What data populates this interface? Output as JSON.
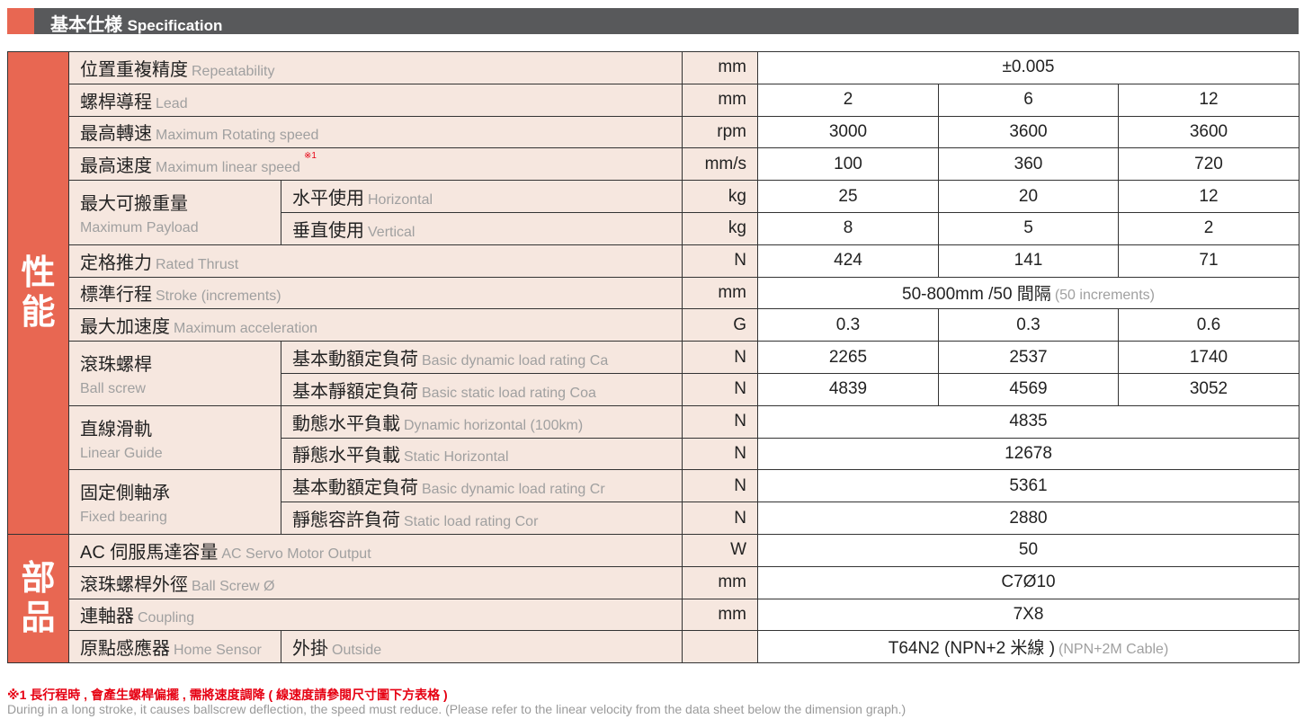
{
  "header": {
    "title_zh": "基本仕様",
    "title_en": "Specification"
  },
  "sections": [
    {
      "title": "性能",
      "rows": [
        {
          "zh": "位置重複精度",
          "en": "Repeatability",
          "unit": "mm",
          "values": [
            "±0.005"
          ]
        },
        {
          "zh": "螺桿導程",
          "en": "Lead",
          "unit": "mm",
          "values": [
            "2",
            "6",
            "12"
          ]
        },
        {
          "zh": "最高轉速",
          "en": "Maximum Rotating speed",
          "unit": "rpm",
          "values": [
            "3000",
            "3600",
            "3600"
          ]
        },
        {
          "zh": "最高速度",
          "en": "Maximum linear speed",
          "note": "※1",
          "unit": "mm/s",
          "values": [
            "100",
            "360",
            "720"
          ]
        },
        {
          "zh": "最大可搬重量",
          "en": "Maximum Payload",
          "subrows": [
            {
              "zh": "水平使用",
              "en": "Horizontal",
              "unit": "kg",
              "values": [
                "25",
                "20",
                "12"
              ]
            },
            {
              "zh": "垂直使用",
              "en": "Vertical",
              "unit": "kg",
              "values": [
                "8",
                "5",
                "2"
              ]
            }
          ]
        },
        {
          "zh": "定格推力",
          "en": "Rated Thrust",
          "unit": "N",
          "values": [
            "424",
            "141",
            "71"
          ]
        },
        {
          "zh": "標準行程",
          "en": "Stroke (increments)",
          "unit": "mm",
          "values": [
            "50-800mm /50 間隔"
          ],
          "value_en": "(50 increments)"
        },
        {
          "zh": "最大加速度",
          "en": "Maximum acceleration",
          "unit": "G",
          "values": [
            "0.3",
            "0.3",
            "0.6"
          ]
        },
        {
          "zh": "滾珠螺桿",
          "en": "Ball screw",
          "subrows": [
            {
              "zh": "基本動額定負荷",
              "en": "Basic dynamic load rating Ca",
              "unit": "N",
              "values": [
                "2265",
                "2537",
                "1740"
              ]
            },
            {
              "zh": "基本靜額定負荷",
              "en": "Basic static load rating Coa",
              "unit": "N",
              "values": [
                "4839",
                "4569",
                "3052"
              ]
            }
          ]
        },
        {
          "zh": "直線滑軌",
          "en": "Linear Guide",
          "subrows": [
            {
              "zh": "動態水平負載",
              "en": "Dynamic horizontal (100km)",
              "unit": "N",
              "values": [
                "4835"
              ]
            },
            {
              "zh": "靜態水平負載",
              "en": "Static Horizontal",
              "unit": "N",
              "values": [
                "12678"
              ]
            }
          ]
        },
        {
          "zh": "固定側軸承",
          "en": "Fixed bearing",
          "subrows": [
            {
              "zh": "基本動額定負荷",
              "en": "Basic dynamic load rating Cr",
              "unit": "N",
              "values": [
                "5361"
              ]
            },
            {
              "zh": "靜態容許負荷",
              "en": "Static load rating Cor",
              "unit": "N",
              "values": [
                "2880"
              ]
            }
          ]
        }
      ]
    },
    {
      "title": "部品",
      "rows": [
        {
          "zh": "AC 伺服馬達容量",
          "en": "AC Servo Motor Output",
          "unit": "W",
          "values": [
            "50"
          ]
        },
        {
          "zh": "滾珠螺桿外徑",
          "en": "Ball Screw Ø",
          "unit": "mm",
          "values": [
            "C7Ø10"
          ]
        },
        {
          "zh": "連軸器",
          "en": "Coupling",
          "unit": "mm",
          "values": [
            "7X8"
          ]
        },
        {
          "zh": "原點感應器",
          "en": "Home Sensor",
          "subrows": [
            {
              "zh": "外掛",
              "en": "Outside",
              "unit": "",
              "values": [
                "T64N2 (NPN+2 米線 )"
              ],
              "value_en": "(NPN+2M Cable)"
            }
          ]
        }
      ]
    }
  ],
  "footnote": {
    "zh": "※1 長行程時 , 會產生螺桿偏擺 , 需將速度調降 ( 線速度請參閱尺寸圖下方表格 )",
    "en": "During in a long stroke, it causes ballscrew deflection, the speed must reduce. (Please refer to the linear velocity from the data sheet below the dimension graph.)"
  }
}
